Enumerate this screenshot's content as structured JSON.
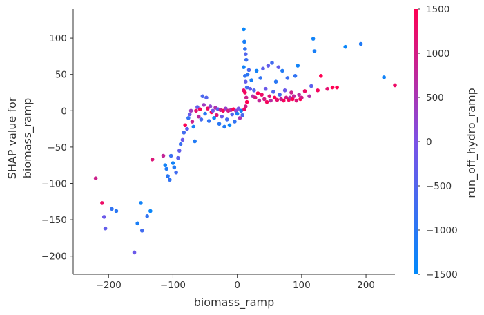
{
  "chart_data": {
    "type": "scatter",
    "xlabel": "biomass_ramp",
    "ylabel_line1": "SHAP value for",
    "ylabel_line2": "biomass_ramp",
    "xlim": [
      -255,
      245
    ],
    "ylim": [
      -225,
      140
    ],
    "xticks": [
      -200,
      -100,
      0,
      100,
      200
    ],
    "xtick_labels": [
      "−200",
      "−100",
      "0",
      "100",
      "200"
    ],
    "yticks": [
      -200,
      -150,
      -100,
      -50,
      0,
      50,
      100
    ],
    "ytick_labels": [
      "−200",
      "−150",
      "−100",
      "−50",
      "0",
      "50",
      "100"
    ],
    "grid": false,
    "legend": "none",
    "colorbar": {
      "label": "run_off_hydro_ramp",
      "range": [
        -1500,
        1500
      ],
      "ticks": [
        -1500,
        -1000,
        -500,
        0,
        500,
        1000,
        1500
      ],
      "tick_labels": [
        "−1500",
        "−1000",
        "−500",
        "0",
        "500",
        "1000",
        "1500"
      ],
      "colormap": [
        "#008afb",
        "#7c52e6",
        "#ff0052"
      ]
    },
    "points": [
      [
        -220,
        -93,
        900
      ],
      [
        -210,
        -127,
        1300
      ],
      [
        -207,
        -146,
        -200
      ],
      [
        -205,
        -162,
        -300
      ],
      [
        -195,
        -135,
        -900
      ],
      [
        -188,
        -138,
        -1000
      ],
      [
        -160,
        -195,
        -200
      ],
      [
        -155,
        -155,
        -1200
      ],
      [
        -150,
        -127,
        -1300
      ],
      [
        -148,
        -165,
        -700
      ],
      [
        -140,
        -145,
        -900
      ],
      [
        -135,
        -138,
        -1400
      ],
      [
        -132,
        -67,
        1100
      ],
      [
        -115,
        -62,
        800
      ],
      [
        -112,
        -75,
        -1300
      ],
      [
        -110,
        -80,
        -1100
      ],
      [
        -108,
        -90,
        -1000
      ],
      [
        -105,
        -95,
        -900
      ],
      [
        -103,
        -62,
        -800
      ],
      [
        -100,
        -72,
        -1300
      ],
      [
        -98,
        -78,
        -1100
      ],
      [
        -95,
        -85,
        -700
      ],
      [
        -92,
        -65,
        -400
      ],
      [
        -90,
        -55,
        -300
      ],
      [
        -88,
        -46,
        -800
      ],
      [
        -85,
        -40,
        -200
      ],
      [
        -83,
        -30,
        -700
      ],
      [
        -81,
        -20,
        1500
      ],
      [
        -78,
        -25,
        -400
      ],
      [
        -76,
        -10,
        -900
      ],
      [
        -74,
        -5,
        -200
      ],
      [
        -72,
        0,
        400
      ],
      [
        -70,
        -15,
        900
      ],
      [
        -68,
        -22,
        -1200
      ],
      [
        -66,
        -42,
        -1100
      ],
      [
        -64,
        0,
        1200
      ],
      [
        -62,
        5,
        -300
      ],
      [
        -60,
        -8,
        700
      ],
      [
        -58,
        2,
        1400
      ],
      [
        -56,
        -12,
        -700
      ],
      [
        -54,
        20,
        -600
      ],
      [
        -52,
        8,
        400
      ],
      [
        -50,
        -4,
        -1000
      ],
      [
        -48,
        18,
        -500
      ],
      [
        -46,
        3,
        1300
      ],
      [
        -44,
        -14,
        -900
      ],
      [
        -42,
        6,
        200
      ],
      [
        -40,
        -2,
        1500
      ],
      [
        -38,
        0,
        -100
      ],
      [
        -36,
        -10,
        -1300
      ],
      [
        -34,
        4,
        600
      ],
      [
        -32,
        -6,
        1100
      ],
      [
        -30,
        2,
        -400
      ],
      [
        -28,
        -18,
        -1000
      ],
      [
        -26,
        1,
        900
      ],
      [
        -24,
        -8,
        -200
      ],
      [
        -22,
        0,
        1400
      ],
      [
        -20,
        -22,
        -1100
      ],
      [
        -18,
        3,
        300
      ],
      [
        -16,
        -12,
        -700
      ],
      [
        -14,
        0,
        1000
      ],
      [
        -12,
        -20,
        -1400
      ],
      [
        -10,
        1,
        700
      ],
      [
        -8,
        -5,
        -500
      ],
      [
        -6,
        2,
        1500
      ],
      [
        -4,
        -15,
        -900
      ],
      [
        -2,
        0,
        200
      ],
      [
        0,
        -4,
        -1200
      ],
      [
        2,
        3,
        -100
      ],
      [
        4,
        -10,
        500
      ],
      [
        6,
        0,
        -1300
      ],
      [
        8,
        -6,
        -600
      ],
      [
        10,
        112,
        -1400
      ],
      [
        11,
        95,
        -1200
      ],
      [
        12,
        85,
        -900
      ],
      [
        13,
        78,
        -500
      ],
      [
        14,
        70,
        -800
      ],
      [
        10,
        60,
        -1300
      ],
      [
        12,
        48,
        -900
      ],
      [
        13,
        40,
        -300
      ],
      [
        15,
        32,
        -700
      ],
      [
        10,
        28,
        1200
      ],
      [
        12,
        25,
        1400
      ],
      [
        14,
        18,
        900
      ],
      [
        15,
        12,
        1500
      ],
      [
        13,
        6,
        1000
      ],
      [
        11,
        2,
        1300
      ],
      [
        16,
        50,
        -1000
      ],
      [
        18,
        56,
        -600
      ],
      [
        20,
        30,
        -300
      ],
      [
        22,
        42,
        -1200
      ],
      [
        24,
        20,
        600
      ],
      [
        26,
        28,
        -500
      ],
      [
        28,
        18,
        1100
      ],
      [
        30,
        55,
        -1300
      ],
      [
        32,
        24,
        1500
      ],
      [
        34,
        14,
        800
      ],
      [
        36,
        45,
        -900
      ],
      [
        38,
        22,
        1300
      ],
      [
        40,
        58,
        -400
      ],
      [
        42,
        16,
        1000
      ],
      [
        44,
        30,
        -200
      ],
      [
        46,
        12,
        1400
      ],
      [
        48,
        62,
        -300
      ],
      [
        50,
        20,
        1100
      ],
      [
        52,
        14,
        700
      ],
      [
        54,
        66,
        -700
      ],
      [
        56,
        26,
        -500
      ],
      [
        58,
        18,
        1500
      ],
      [
        60,
        40,
        -1000
      ],
      [
        62,
        15,
        1200
      ],
      [
        64,
        60,
        -300
      ],
      [
        66,
        22,
        -600
      ],
      [
        68,
        16,
        900
      ],
      [
        70,
        55,
        -1100
      ],
      [
        72,
        14,
        1400
      ],
      [
        74,
        28,
        -200
      ],
      [
        76,
        18,
        1000
      ],
      [
        78,
        45,
        -800
      ],
      [
        80,
        15,
        1300
      ],
      [
        82,
        18,
        600
      ],
      [
        84,
        25,
        900
      ],
      [
        86,
        16,
        1500
      ],
      [
        88,
        20,
        800
      ],
      [
        90,
        48,
        -900
      ],
      [
        92,
        14,
        1100
      ],
      [
        94,
        62,
        -1300
      ],
      [
        96,
        22,
        700
      ],
      [
        98,
        16,
        1500
      ],
      [
        100,
        18,
        1000
      ],
      [
        105,
        27,
        1300
      ],
      [
        112,
        20,
        600
      ],
      [
        115,
        34,
        -400
      ],
      [
        118,
        99,
        -1300
      ],
      [
        120,
        82,
        -1200
      ],
      [
        125,
        28,
        1400
      ],
      [
        130,
        48,
        1500
      ],
      [
        140,
        30,
        1200
      ],
      [
        148,
        32,
        1500
      ],
      [
        155,
        32,
        1500
      ],
      [
        168,
        88,
        -1400
      ],
      [
        192,
        92,
        -1100
      ],
      [
        228,
        46,
        -1300
      ],
      [
        245,
        35,
        1300
      ]
    ]
  }
}
